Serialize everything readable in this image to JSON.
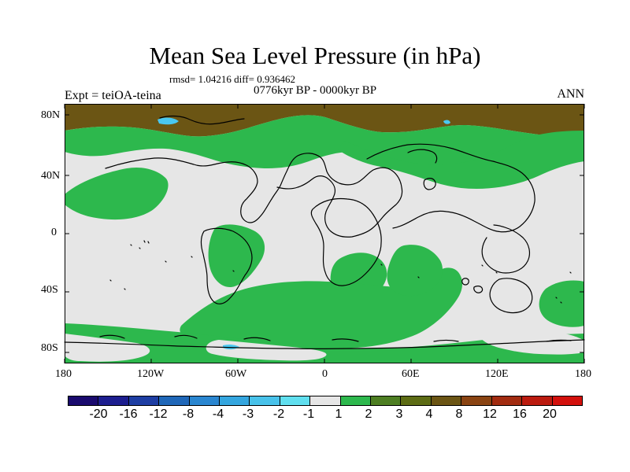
{
  "header": {
    "title": "Mean Sea Level Pressure (in hPa)",
    "stats": "rmsd= 1.04216 diff= 0.936462",
    "period": "0776kyr BP - 0000kyr BP",
    "experiment": "Expt = teiOA-teina",
    "season": "ANN"
  },
  "map": {
    "lat_labels": [
      "80N",
      "40N",
      "0",
      "40S",
      "80S"
    ],
    "lon_labels": [
      "180",
      "120W",
      "60W",
      "0",
      "60E",
      "120E",
      "180"
    ],
    "land_outline_color": "#000000",
    "background_color": "#e6e6e6",
    "positive_color": "#2db84d",
    "mid_positive_color": "#4d7e22",
    "brown_color": "#6b5514",
    "light_blue_color": "#49c8f1",
    "regions": [
      {
        "name": "north-pole-brown",
        "fill": "brown_color"
      },
      {
        "name": "green-ring-north",
        "fill": "positive_color"
      },
      {
        "name": "green-eurasia",
        "fill": "positive_color"
      },
      {
        "name": "green-north-pacific",
        "fill": "positive_color"
      },
      {
        "name": "green-south-america",
        "fill": "positive_color"
      },
      {
        "name": "green-south-atlantic",
        "fill": "positive_color"
      },
      {
        "name": "green-southern-ocean",
        "fill": "positive_color"
      },
      {
        "name": "green-indian-ocean",
        "fill": "positive_color"
      },
      {
        "name": "green-south-pacific-east",
        "fill": "positive_color"
      },
      {
        "name": "green-antarctic-ring",
        "fill": "positive_color"
      },
      {
        "name": "blue-patches",
        "fill": "light_blue_color"
      }
    ]
  },
  "legend": {
    "colors": [
      "#1a0a6e",
      "#1d1e8f",
      "#1e3ea3",
      "#1f67b8",
      "#2a86d0",
      "#34a6df",
      "#48c2ea",
      "#60dfef",
      "#e6e6e6",
      "#2db84d",
      "#4d7e22",
      "#5d6c14",
      "#6b5514",
      "#8a4412",
      "#a22c10",
      "#bb1b0f",
      "#d3100c"
    ],
    "labels": [
      "-20",
      "-16",
      "-12",
      "-8",
      "-4",
      "-3",
      "-2",
      "-1",
      "1",
      "2",
      "3",
      "4",
      "8",
      "12",
      "16",
      "20"
    ]
  }
}
